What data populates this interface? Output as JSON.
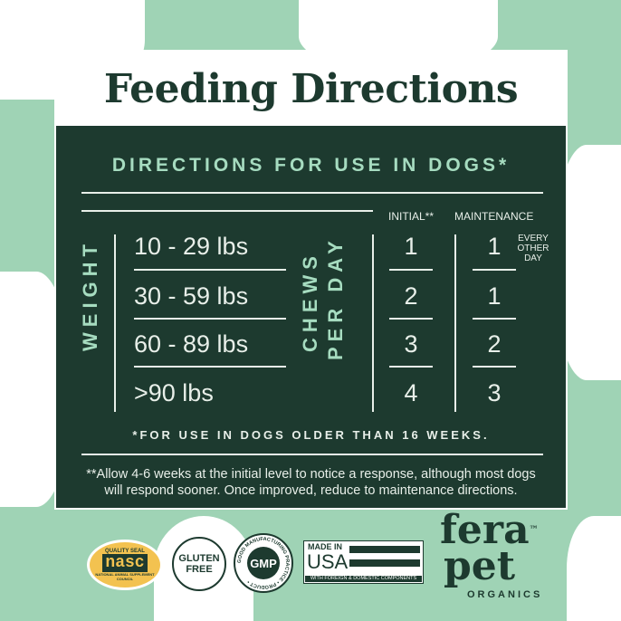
{
  "title": "Feeding Directions",
  "subtitle": "DIRECTIONS FOR USE IN DOGS*",
  "weight_label": "WEIGHT",
  "chews_label_1": "CHEWS",
  "chews_label_2": "PER DAY",
  "col_initial": "INITIAL**",
  "col_maintenance": "MAINTENANCE",
  "rows": [
    {
      "weight": "10 - 29 lbs",
      "initial": "1",
      "maintenance": "1",
      "note": "EVERY OTHER DAY"
    },
    {
      "weight": "30 - 59 lbs",
      "initial": "2",
      "maintenance": "1"
    },
    {
      "weight": "60 - 89 lbs",
      "initial": "3",
      "maintenance": "2"
    },
    {
      "weight": ">90 lbs",
      "initial": "4",
      "maintenance": "3"
    }
  ],
  "footnote": "*FOR USE IN DOGS OLDER THAN 16 WEEKS.",
  "note": "**Allow 4-6 weeks at the initial level to notice a response, although most dogs will respond sooner. Once improved, reduce to maintenance directions.",
  "badges": {
    "nasc_top": "QUALITY SEAL",
    "nasc": "nasc",
    "nasc_bottom": "NATIONAL ANIMAL SUPPLEMENT COUNCIL",
    "gluten": "GLUTEN FREE",
    "gmp": "GMP",
    "gmp_ring": "GOOD MANUFACTURING PRACTICE • PRODUCT •",
    "usa_top": "MADE IN",
    "usa": "USA",
    "usa_bottom": "WITH FOREIGN & DOMESTIC COMPONENTS"
  },
  "brand": {
    "line1": "fera",
    "line2": "pet",
    "tm": "™",
    "organics": "ORGANICS"
  },
  "colors": {
    "panel": "#1d3a2f",
    "accent": "#a6dcc0",
    "background": "#9fd3b5"
  }
}
